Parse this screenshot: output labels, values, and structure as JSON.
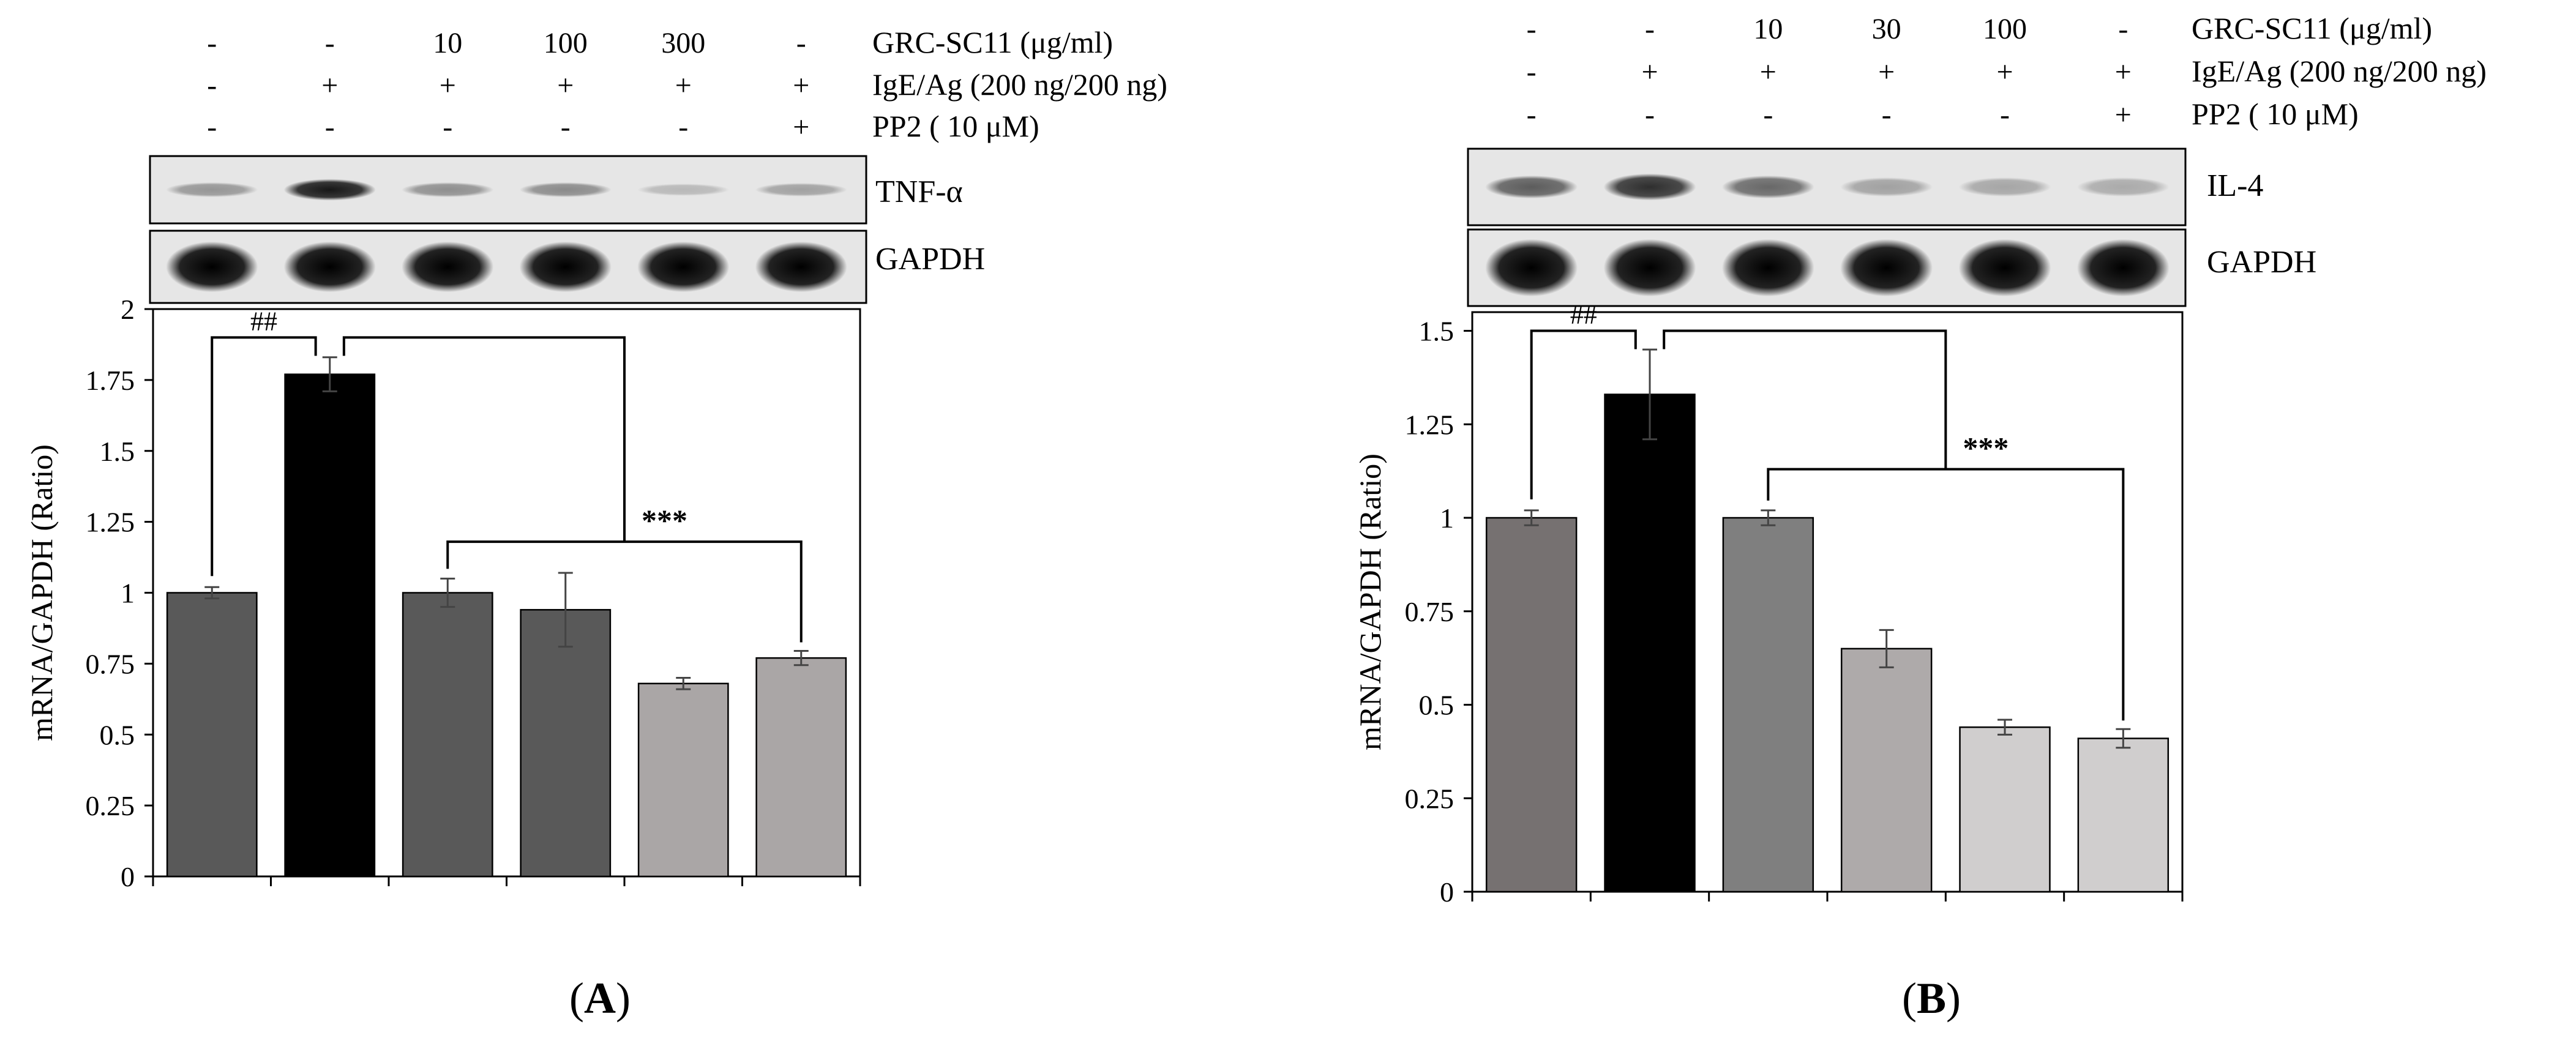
{
  "chart_data": [
    {
      "type": "bar",
      "panel_label": "A",
      "conditions": [
        {
          "label": "GRC-SC11 (μg/ml)",
          "values": [
            "-",
            "-",
            "10",
            "100",
            "300",
            "-"
          ]
        },
        {
          "label": "IgE/Ag (200 ng/200 ng)",
          "values": [
            "-",
            "+",
            "+",
            "+",
            "+",
            "+"
          ]
        },
        {
          "label": "PP2 ( 10 μM)",
          "values": [
            "-",
            "-",
            "-",
            "-",
            "-",
            "+"
          ]
        }
      ],
      "blots": [
        {
          "label": "TNF-α",
          "intensity": [
            0.35,
            0.9,
            0.38,
            0.4,
            0.2,
            0.3
          ],
          "height": [
            0.22,
            0.32,
            0.22,
            0.22,
            0.18,
            0.2
          ]
        },
        {
          "label": "GAPDH",
          "intensity": [
            1,
            1,
            1,
            1,
            1,
            1
          ],
          "height": [
            0.7,
            0.7,
            0.7,
            0.7,
            0.7,
            0.7
          ]
        }
      ],
      "values": [
        1.0,
        1.77,
        1.0,
        0.94,
        0.68,
        0.77
      ],
      "errors": [
        0.02,
        0.06,
        0.05,
        0.13,
        0.02,
        0.025
      ],
      "colors": [
        "#595959",
        "#000000",
        "#595959",
        "#595959",
        "#aaa6a6",
        "#aaa6a6"
      ],
      "ylabel": "mRNA/GAPDH (Ratio)",
      "ylim": [
        0,
        2
      ],
      "yticks": [
        0,
        0.25,
        0.5,
        0.75,
        1,
        1.25,
        1.5,
        1.75,
        2
      ],
      "ytick_labels": [
        "0",
        "0.25",
        "0.5",
        "0.75",
        "1",
        "1.25",
        "1.5",
        "1.75",
        "2"
      ],
      "grid": false,
      "significance": [
        {
          "text": "##",
          "from": 0,
          "to": [
            1
          ],
          "level": 1.9
        },
        {
          "text": "***",
          "from": 1,
          "to": [
            2,
            5
          ],
          "level": 1.9,
          "inner_level": 1.18
        }
      ]
    },
    {
      "type": "bar",
      "panel_label": "B",
      "conditions": [
        {
          "label": "GRC-SC11 (μg/ml)",
          "values": [
            "-",
            "-",
            "10",
            "30",
            "100",
            "-"
          ]
        },
        {
          "label": "IgE/Ag (200 ng/200 ng)",
          "values": [
            "-",
            "+",
            "+",
            "+",
            "+",
            "+"
          ]
        },
        {
          "label": "PP2 ( 10 μM)",
          "values": [
            "-",
            "-",
            "-",
            "-",
            "-",
            "+"
          ]
        }
      ],
      "blots": [
        {
          "label": "IL-4",
          "intensity": [
            0.6,
            0.8,
            0.55,
            0.3,
            0.28,
            0.26
          ],
          "height": [
            0.3,
            0.35,
            0.3,
            0.25,
            0.25,
            0.25
          ]
        },
        {
          "label": "GAPDH",
          "intensity": [
            1,
            1,
            1,
            1,
            1,
            1
          ],
          "height": [
            0.75,
            0.75,
            0.75,
            0.75,
            0.75,
            0.75
          ]
        }
      ],
      "values": [
        1.0,
        1.33,
        1.0,
        0.65,
        0.44,
        0.41
      ],
      "errors": [
        0.02,
        0.12,
        0.02,
        0.05,
        0.02,
        0.025
      ],
      "colors": [
        "#767171",
        "#000000",
        "#7f7f7f",
        "#aeaaaa",
        "#d0cece",
        "#d0cece"
      ],
      "ylabel": "mRNA/GAPDH (Ratio)",
      "ylim": [
        0,
        1.55
      ],
      "yticks": [
        0,
        0.25,
        0.5,
        0.75,
        1,
        1.25,
        1.5
      ],
      "ytick_labels": [
        "0",
        "0.25",
        "0.5",
        "0.75",
        "1",
        "1.25",
        "1.5"
      ],
      "grid": false,
      "significance": [
        {
          "text": "##",
          "from": 0,
          "to": [
            1
          ],
          "level": 1.5
        },
        {
          "text": "***",
          "from": 1,
          "to": [
            2,
            5
          ],
          "level": 1.5,
          "inner_level": 1.13
        }
      ]
    }
  ]
}
